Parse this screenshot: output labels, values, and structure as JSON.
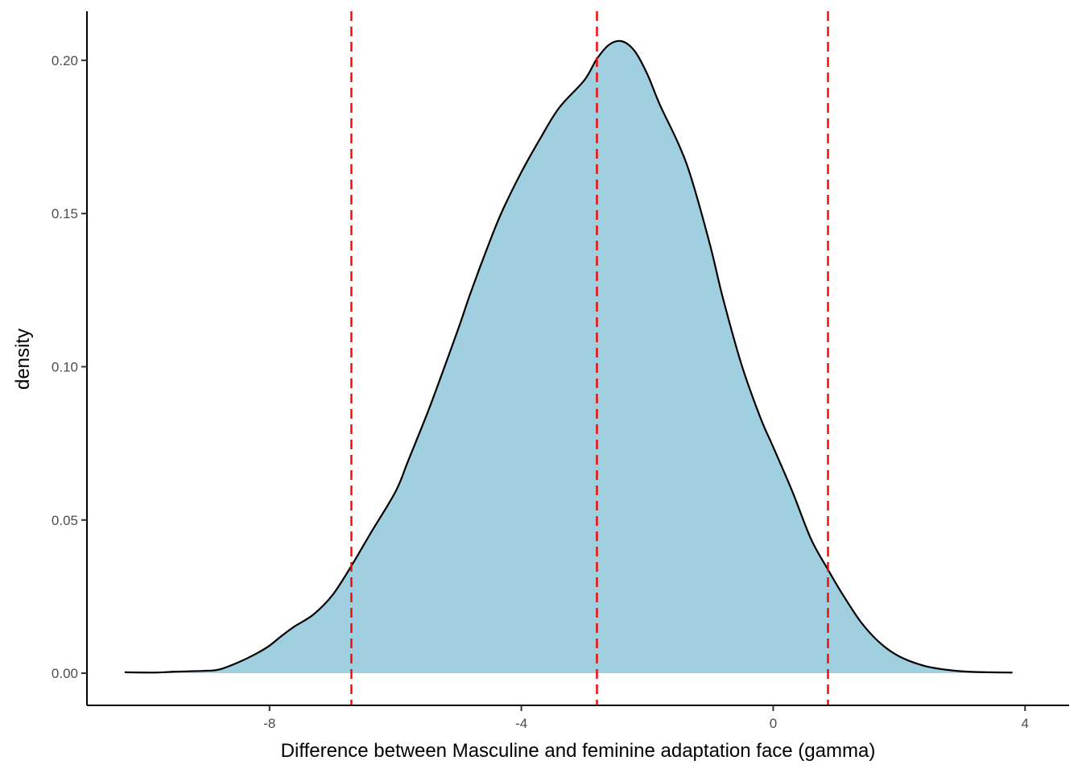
{
  "chart_data": {
    "type": "area",
    "xlabel": "Difference between Masculine and feminine adaptation face (gamma)",
    "ylabel": "density",
    "xlim": [
      -10.9,
      4.7
    ],
    "ylim": [
      -0.0105,
      0.216
    ],
    "x_ticks": [
      -8,
      -4,
      0,
      4
    ],
    "x_tick_labels": [
      "-8",
      "-4",
      "0",
      "4"
    ],
    "y_ticks": [
      0.0,
      0.05,
      0.1,
      0.15,
      0.2
    ],
    "y_tick_labels": [
      "0.00",
      "0.05",
      "0.10",
      "0.15",
      "0.20"
    ],
    "grid": false,
    "legend": "none",
    "fill_color": "#a0cfe0",
    "line_color": "#000000",
    "vline_color": "#ff0000",
    "vlines": [
      -6.7,
      -2.8,
      0.87
    ],
    "series": [
      {
        "x": [
          -10.3,
          -9.8,
          -9.5,
          -9.0,
          -8.8,
          -8.5,
          -8.2,
          -8.0,
          -7.8,
          -7.6,
          -7.3,
          -7.0,
          -6.7,
          -6.4,
          -6.0,
          -5.8,
          -5.5,
          -5.3,
          -5.0,
          -4.8,
          -4.5,
          -4.3,
          -4.0,
          -3.7,
          -3.4,
          -3.0,
          -2.8,
          -2.6,
          -2.4,
          -2.2,
          -2.0,
          -1.8,
          -1.5,
          -1.3,
          -1.0,
          -0.8,
          -0.5,
          -0.2,
          0.0,
          0.3,
          0.6,
          0.87,
          1.1,
          1.4,
          1.7,
          2.0,
          2.4,
          2.8,
          3.2,
          3.8
        ],
        "y": [
          0.0003,
          0.0002,
          0.0005,
          0.0008,
          0.0012,
          0.0035,
          0.0065,
          0.009,
          0.0123,
          0.0153,
          0.0192,
          0.0255,
          0.035,
          0.0455,
          0.0592,
          0.0692,
          0.0845,
          0.0955,
          0.1125,
          0.1245,
          0.141,
          0.151,
          0.1635,
          0.1745,
          0.1845,
          0.1935,
          0.2005,
          0.2052,
          0.2062,
          0.203,
          0.1955,
          0.1855,
          0.1725,
          0.1615,
          0.1395,
          0.1225,
          0.1005,
          0.0832,
          0.0738,
          0.0595,
          0.0438,
          0.0338,
          0.0258,
          0.0165,
          0.0098,
          0.0055,
          0.0024,
          0.001,
          0.0004,
          0.0002
        ]
      }
    ]
  }
}
